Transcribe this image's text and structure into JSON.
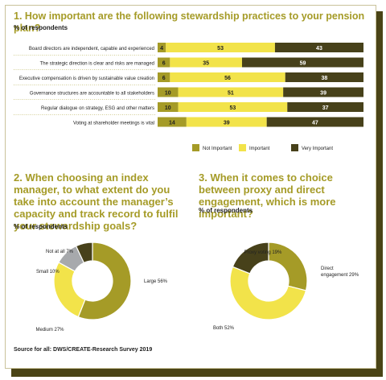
{
  "q1": {
    "title": "1. How important are the following stewardship practices to your pension plan?",
    "subtitle": "% of respondents"
  },
  "q2": {
    "title": "2. When choosing an index manager, to what extent do you take into account the manager’s capacity and track record to fulfil your stewardship goals?",
    "subtitle": "% of respondents"
  },
  "q3": {
    "title": "3. When it comes to choice between proxy and direct engagement, which is more important?",
    "subtitle": "% of respondents"
  },
  "source": "Source for all: DWS/CREATE-Research Survey 2019",
  "colors": {
    "olive": "#a59b27",
    "yellow": "#f2e34a",
    "dark": "#47411a",
    "grey": "#a7a9ac"
  },
  "chart_data": [
    {
      "type": "bar",
      "stacked": true,
      "orientation": "horizontal",
      "categories": [
        "Board directors are independent, capable and experienced",
        "The strategic direction is clear and risks are managed",
        "Executive compensation is driven by sustainable value creation",
        "Governance structures are accountable to all stakeholders",
        "Regular dialogue on strategy, ESG and other matters",
        "Voting at shareholder meetings is vital"
      ],
      "series": [
        {
          "name": "Not Important",
          "color": "#a59b27",
          "values": [
            4,
            6,
            6,
            10,
            10,
            14
          ]
        },
        {
          "name": "Important",
          "color": "#f2e34a",
          "values": [
            53,
            35,
            56,
            51,
            53,
            39
          ]
        },
        {
          "name": "Very Important",
          "color": "#47411a",
          "values": [
            43,
            59,
            38,
            39,
            37,
            47
          ]
        }
      ],
      "xlim": [
        0,
        100
      ],
      "legend": "bottom"
    },
    {
      "type": "pie",
      "donut": true,
      "labels": [
        "Large 56%",
        "Medium 27%",
        "Small 10%",
        "Not at all 7%"
      ],
      "values": [
        56,
        27,
        10,
        7
      ],
      "colors": [
        "#a59b27",
        "#f2e34a",
        "#a7a9ac",
        "#47411a"
      ]
    },
    {
      "type": "pie",
      "donut": true,
      "labels": [
        "Direct engagement 29%",
        "Both 52%",
        "Proxy voting 19%"
      ],
      "values": [
        29,
        52,
        19
      ],
      "colors": [
        "#a59b27",
        "#f2e34a",
        "#47411a"
      ]
    }
  ]
}
